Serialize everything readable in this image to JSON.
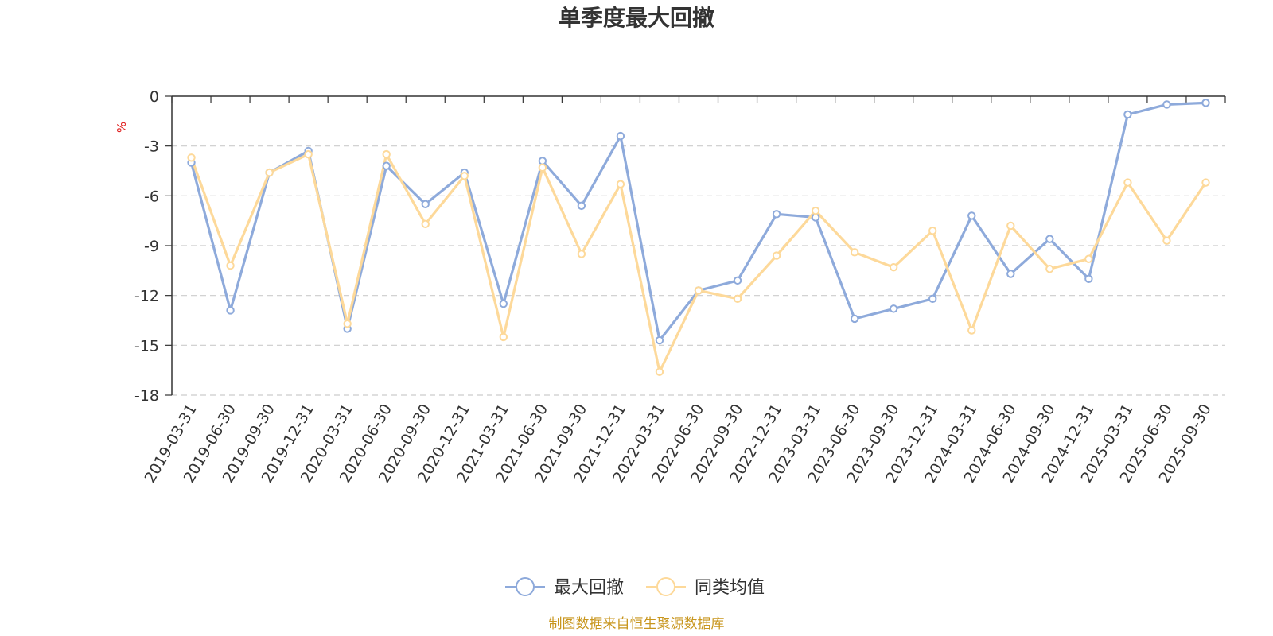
{
  "chart_data": {
    "type": "line",
    "title": "单季度最大回撤",
    "ylabel": "%",
    "ylim": [
      -18,
      0
    ],
    "yticks": [
      0,
      -3,
      -6,
      -9,
      -12,
      -15,
      -18
    ],
    "grid": true,
    "legend_position": "bottom",
    "source": "制图数据来自恒生聚源数据库",
    "x": [
      "2019-03-31",
      "2019-06-30",
      "2019-09-30",
      "2019-12-31",
      "2020-03-31",
      "2020-06-30",
      "2020-09-30",
      "2020-12-31",
      "2021-03-31",
      "2021-06-30",
      "2021-09-30",
      "2021-12-31",
      "2022-03-31",
      "2022-06-30",
      "2022-09-30",
      "2022-12-31",
      "2023-03-31",
      "2023-06-30",
      "2023-09-30",
      "2023-12-31",
      "2024-03-31",
      "2024-06-30",
      "2024-09-30",
      "2024-12-31",
      "2025-03-31",
      "2025-06-30",
      "2025-09-30"
    ],
    "series": [
      {
        "name": "最大回撤",
        "color": "#8eaadb",
        "values": [
          -4.0,
          -12.9,
          -4.6,
          -3.3,
          -14.0,
          -4.2,
          -6.5,
          -4.6,
          -12.5,
          -3.9,
          -6.6,
          -2.4,
          -14.7,
          -11.7,
          -11.1,
          -7.1,
          -7.3,
          -13.4,
          -12.8,
          -12.2,
          -7.2,
          -10.7,
          -8.6,
          -11.0,
          -1.1,
          -0.5,
          -0.4
        ]
      },
      {
        "name": "同类均值",
        "color": "#fdd99a",
        "values": [
          -3.7,
          -10.2,
          -4.6,
          -3.5,
          -13.7,
          -3.5,
          -7.7,
          -4.8,
          -14.5,
          -4.3,
          -9.5,
          -5.3,
          -16.6,
          -11.7,
          -12.2,
          -9.6,
          -6.9,
          -9.4,
          -10.3,
          -8.1,
          -14.1,
          -7.8,
          -10.4,
          -9.8,
          -5.2,
          -8.7,
          -5.2
        ]
      }
    ]
  }
}
